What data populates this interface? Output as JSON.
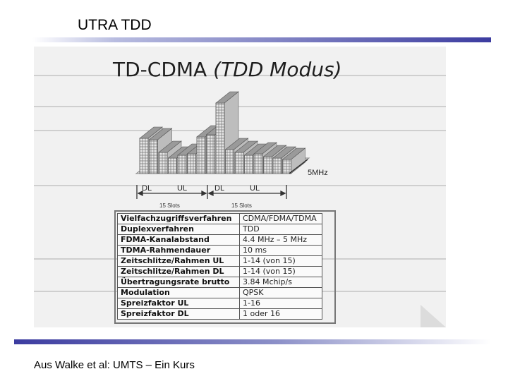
{
  "slide": {
    "title": "UTRA TDD",
    "footer": "Aus Walke et al: UMTS – Ein Kurs"
  },
  "figure": {
    "title": "TD-CDMA",
    "title_italic": "(TDD Modus)",
    "bandwidth_label": "5MHz",
    "frame_labels": [
      "DL",
      "UL",
      "DL",
      "UL"
    ],
    "slot_labels": [
      "15 Slots",
      "15 Slots"
    ]
  },
  "spec_table": {
    "rows": [
      {
        "key": "Vielfachzugriffsverfahren",
        "value": "CDMA/FDMA/TDMA"
      },
      {
        "key": "Duplexverfahren",
        "value": "TDD"
      },
      {
        "key": "FDMA-Kanalabstand",
        "value": "4.4 MHz – 5 MHz"
      },
      {
        "key": "TDMA-Rahmendauer",
        "value": "10 ms"
      },
      {
        "key": "Zeitschlitze/Rahmen UL",
        "value": "1-14 (von 15)"
      },
      {
        "key": "Zeitschlitze/Rahmen DL",
        "value": "1-14 (von 15)"
      },
      {
        "key": "Übertragungsrate brutto",
        "value": "3.84 Mchip/s"
      },
      {
        "key": "Modulation",
        "value": "QPSK"
      },
      {
        "key": "Spreizfaktor UL",
        "value": "1-16"
      },
      {
        "key": "Spreizfaktor DL",
        "value": "1 oder 16"
      }
    ]
  },
  "colors": {
    "accent_rule": "#3c3ca0",
    "scan_background": "#f1f1f1"
  }
}
